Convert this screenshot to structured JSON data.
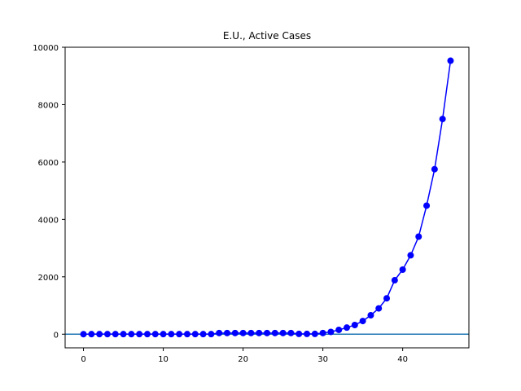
{
  "chart_data": {
    "type": "line",
    "title": "E.U., Active Cases",
    "xlabel": "",
    "ylabel": "",
    "xlim": [
      -2.3,
      48.3
    ],
    "ylim": [
      -475,
      10000
    ],
    "x_ticks": [
      0,
      10,
      20,
      30,
      40
    ],
    "y_ticks": [
      0,
      2000,
      4000,
      6000,
      8000,
      10000
    ],
    "grid": false,
    "series": [
      {
        "color": "#0000ff",
        "marker": "circle",
        "x": [
          0,
          1,
          2,
          3,
          4,
          5,
          6,
          7,
          8,
          9,
          10,
          11,
          12,
          13,
          14,
          15,
          16,
          17,
          18,
          19,
          20,
          21,
          22,
          23,
          24,
          25,
          26,
          27,
          28,
          29,
          30,
          31,
          32,
          33,
          34,
          35,
          36,
          37,
          38,
          39,
          40,
          41,
          42,
          43,
          44,
          45,
          46
        ],
        "y": [
          2,
          3,
          3,
          3,
          3,
          3,
          3,
          3,
          3,
          3,
          3,
          3,
          3,
          3,
          3,
          3,
          3,
          40,
          40,
          40,
          40,
          40,
          40,
          40,
          40,
          40,
          40,
          10,
          10,
          10,
          40,
          80,
          150,
          230,
          320,
          460,
          660,
          900,
          1250,
          1880,
          2250,
          2750,
          3400,
          4480,
          5750,
          7500,
          9530
        ]
      }
    ],
    "reference_lines": [
      {
        "orientation": "horizontal",
        "y": 0,
        "color": "#1f77b4"
      }
    ]
  }
}
